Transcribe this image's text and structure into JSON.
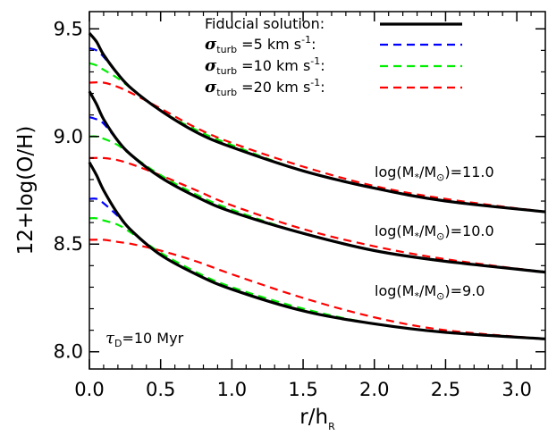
{
  "chart_data": {
    "type": "line",
    "title": "",
    "xlabel": {
      "main": "r/h",
      "sub": "R"
    },
    "ylabel": "12+log(O/H)",
    "xlim": [
      0.0,
      3.2
    ],
    "ylim": [
      7.92,
      9.58
    ],
    "xticks": [
      "0.0",
      "0.5",
      "1.0",
      "1.5",
      "2.0",
      "2.5",
      "3.0"
    ],
    "yticks": [
      "8.0",
      "8.5",
      "9.0",
      "9.5"
    ],
    "legend_position": "top-right",
    "legend": [
      {
        "label": "Fiducial solution:",
        "color": "#000000",
        "style": "solid"
      },
      {
        "label_sigma": "σ",
        "label_sub": "turb",
        "label_rest": " =5 km s",
        "label_exp": "-1",
        "label_end": ":",
        "color": "#0000ff",
        "style": "dashed"
      },
      {
        "label_sigma": "σ",
        "label_sub": "turb",
        "label_rest": " =10 km s",
        "label_exp": "-1",
        "label_end": ":",
        "color": "#00ee00",
        "style": "dashed"
      },
      {
        "label_sigma": "σ",
        "label_sub": "turb",
        "label_rest": " =20 km s",
        "label_exp": "-1",
        "label_end": ":",
        "color": "#ff0000",
        "style": "dashed"
      }
    ],
    "annotations": [
      {
        "pre": "log(M",
        "sub1": "*",
        "mid": "/M",
        "sub2": "⊙",
        "post": ")=11.0"
      },
      {
        "pre": "log(M",
        "sub1": "*",
        "mid": "/M",
        "sub2": "⊙",
        "post": ")=10.0"
      },
      {
        "pre": "log(M",
        "sub1": "*",
        "mid": "/M",
        "sub2": "⊙",
        "post": ")=9.0"
      },
      {
        "tau": "τ",
        "sub": "D",
        "post": "=10 Myr"
      }
    ],
    "groups": [
      {
        "name": "log(M*/M⊙)=11.0",
        "series": [
          {
            "name": "Fiducial solution",
            "x": [
              0,
              0.05,
              0.1,
              0.2,
              0.3,
              0.5,
              0.75,
              1.0,
              1.5,
              2.0,
              2.5,
              3.2
            ],
            "y": [
              9.48,
              9.44,
              9.38,
              9.29,
              9.22,
              9.12,
              9.02,
              8.95,
              8.84,
              8.76,
              8.7,
              8.65
            ]
          },
          {
            "name": "σturb =5 km s-1",
            "x": [
              0,
              0.05,
              0.1,
              0.2,
              0.3,
              0.5,
              0.75,
              1.0,
              1.5,
              2.0,
              2.5,
              3.2
            ],
            "y": [
              9.41,
              9.4,
              9.37,
              9.29,
              9.22,
              9.12,
              9.02,
              8.95,
              8.84,
              8.76,
              8.7,
              8.65
            ]
          },
          {
            "name": "σturb =10 km s-1",
            "x": [
              0,
              0.05,
              0.1,
              0.2,
              0.3,
              0.5,
              0.75,
              1.0,
              1.5,
              2.0,
              2.5,
              3.2
            ],
            "y": [
              9.34,
              9.33,
              9.31,
              9.27,
              9.22,
              9.12,
              9.03,
              8.96,
              8.84,
              8.76,
              8.7,
              8.65
            ]
          },
          {
            "name": "σturb =20 km s-1",
            "x": [
              0,
              0.1,
              0.2,
              0.3,
              0.5,
              0.75,
              1.0,
              1.5,
              2.0,
              2.5,
              3.2
            ],
            "y": [
              9.25,
              9.25,
              9.23,
              9.2,
              9.13,
              9.04,
              8.97,
              8.86,
              8.77,
              8.71,
              8.65
            ]
          }
        ]
      },
      {
        "name": "log(M*/M⊙)=10.0",
        "series": [
          {
            "name": "Fiducial solution",
            "x": [
              0,
              0.05,
              0.1,
              0.2,
              0.3,
              0.5,
              0.75,
              1.0,
              1.5,
              2.0,
              2.5,
              3.2
            ],
            "y": [
              9.21,
              9.15,
              9.08,
              8.98,
              8.91,
              8.81,
              8.72,
              8.65,
              8.55,
              8.47,
              8.42,
              8.37
            ]
          },
          {
            "name": "σturb =5 km s-1",
            "x": [
              0,
              0.05,
              0.1,
              0.2,
              0.3,
              0.5,
              0.75,
              1.0,
              1.5,
              2.0,
              2.5,
              3.2
            ],
            "y": [
              9.09,
              9.08,
              9.06,
              8.98,
              8.91,
              8.81,
              8.72,
              8.65,
              8.55,
              8.47,
              8.42,
              8.37
            ]
          },
          {
            "name": "σturb =10 km s-1",
            "x": [
              0,
              0.05,
              0.1,
              0.2,
              0.3,
              0.5,
              0.75,
              1.0,
              1.5,
              2.0,
              2.5,
              3.2
            ],
            "y": [
              9.0,
              9.0,
              8.99,
              8.96,
              8.91,
              8.82,
              8.73,
              8.66,
              8.55,
              8.47,
              8.42,
              8.37
            ]
          },
          {
            "name": "σturb =20 km s-1",
            "x": [
              0,
              0.1,
              0.2,
              0.3,
              0.5,
              0.75,
              1.0,
              1.5,
              2.0,
              2.5,
              3.2
            ],
            "y": [
              8.9,
              8.9,
              8.89,
              8.87,
              8.82,
              8.75,
              8.68,
              8.57,
              8.49,
              8.43,
              8.37
            ]
          }
        ]
      },
      {
        "name": "log(M*/M⊙)=9.0",
        "series": [
          {
            "name": "Fiducial solution",
            "x": [
              0,
              0.05,
              0.1,
              0.2,
              0.3,
              0.5,
              0.75,
              1.0,
              1.5,
              2.0,
              2.5,
              3.2
            ],
            "y": [
              8.88,
              8.82,
              8.75,
              8.64,
              8.56,
              8.45,
              8.36,
              8.29,
              8.19,
              8.13,
              8.09,
              8.06
            ]
          },
          {
            "name": "σturb =5 km s-1",
            "x": [
              0,
              0.05,
              0.1,
              0.2,
              0.3,
              0.5,
              0.75,
              1.0,
              1.5,
              2.0,
              2.5,
              3.2
            ],
            "y": [
              8.71,
              8.71,
              8.69,
              8.63,
              8.56,
              8.45,
              8.36,
              8.29,
              8.19,
              8.13,
              8.09,
              8.06
            ]
          },
          {
            "name": "σturb =10 km s-1",
            "x": [
              0,
              0.05,
              0.1,
              0.2,
              0.3,
              0.5,
              0.75,
              1.0,
              1.5,
              2.0,
              2.5,
              3.2
            ],
            "y": [
              8.62,
              8.62,
              8.61,
              8.59,
              8.55,
              8.46,
              8.37,
              8.3,
              8.2,
              8.13,
              8.09,
              8.06
            ]
          },
          {
            "name": "σturb =20 km s-1",
            "x": [
              0,
              0.1,
              0.2,
              0.3,
              0.5,
              0.75,
              1.0,
              1.5,
              2.0,
              2.5,
              3.2
            ],
            "y": [
              8.52,
              8.52,
              8.51,
              8.5,
              8.47,
              8.42,
              8.36,
              8.25,
              8.16,
              8.1,
              8.06
            ]
          }
        ]
      }
    ]
  }
}
